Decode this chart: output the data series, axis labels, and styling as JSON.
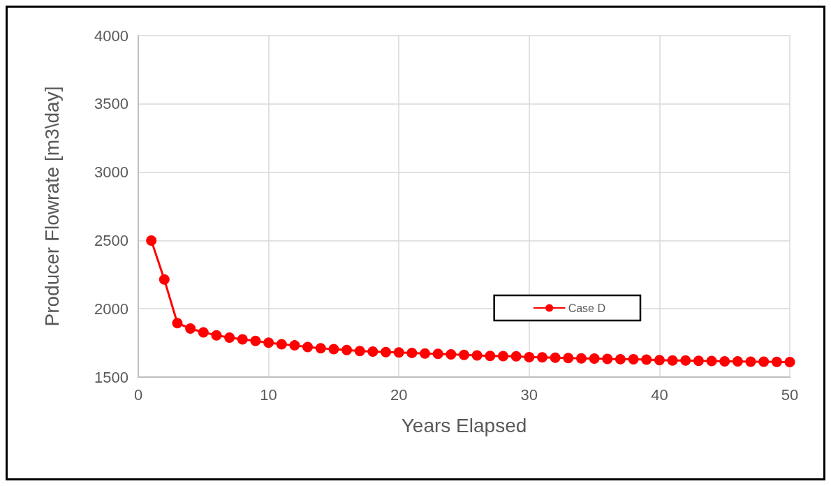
{
  "chart_data": {
    "type": "line",
    "xlabel": "Years Elapsed",
    "ylabel": "Producer Flowrate [m3\\day]",
    "x": [
      1,
      2,
      3,
      4,
      5,
      6,
      7,
      8,
      9,
      10,
      11,
      12,
      13,
      14,
      15,
      16,
      17,
      18,
      19,
      20,
      21,
      22,
      23,
      24,
      25,
      26,
      27,
      28,
      29,
      30,
      31,
      32,
      33,
      34,
      35,
      36,
      37,
      38,
      39,
      40,
      41,
      42,
      43,
      44,
      45,
      46,
      47,
      48,
      49,
      50
    ],
    "series": [
      {
        "name": "Case D",
        "color": "#ff0000",
        "values": [
          2500,
          2214,
          1895,
          1855,
          1827,
          1806,
          1789,
          1776,
          1765,
          1752,
          1740,
          1732,
          1720,
          1711,
          1704,
          1698,
          1691,
          1686,
          1683,
          1680,
          1677,
          1673,
          1670,
          1666,
          1662,
          1659,
          1655,
          1653,
          1652,
          1646,
          1644,
          1642,
          1639,
          1637,
          1635,
          1633,
          1631,
          1630,
          1628,
          1624,
          1622,
          1621,
          1619,
          1617,
          1615,
          1615,
          1613,
          1613,
          1611,
          1610
        ]
      }
    ],
    "xlim": [
      0,
      50
    ],
    "xticks": [
      0,
      10,
      20,
      30,
      40,
      50
    ],
    "ylim": [
      1500,
      4000
    ],
    "yticks": [
      1500,
      2000,
      2500,
      3000,
      3500,
      4000
    ],
    "grid": true,
    "legend": "right",
    "marker": "circle",
    "line_style": "solid"
  }
}
